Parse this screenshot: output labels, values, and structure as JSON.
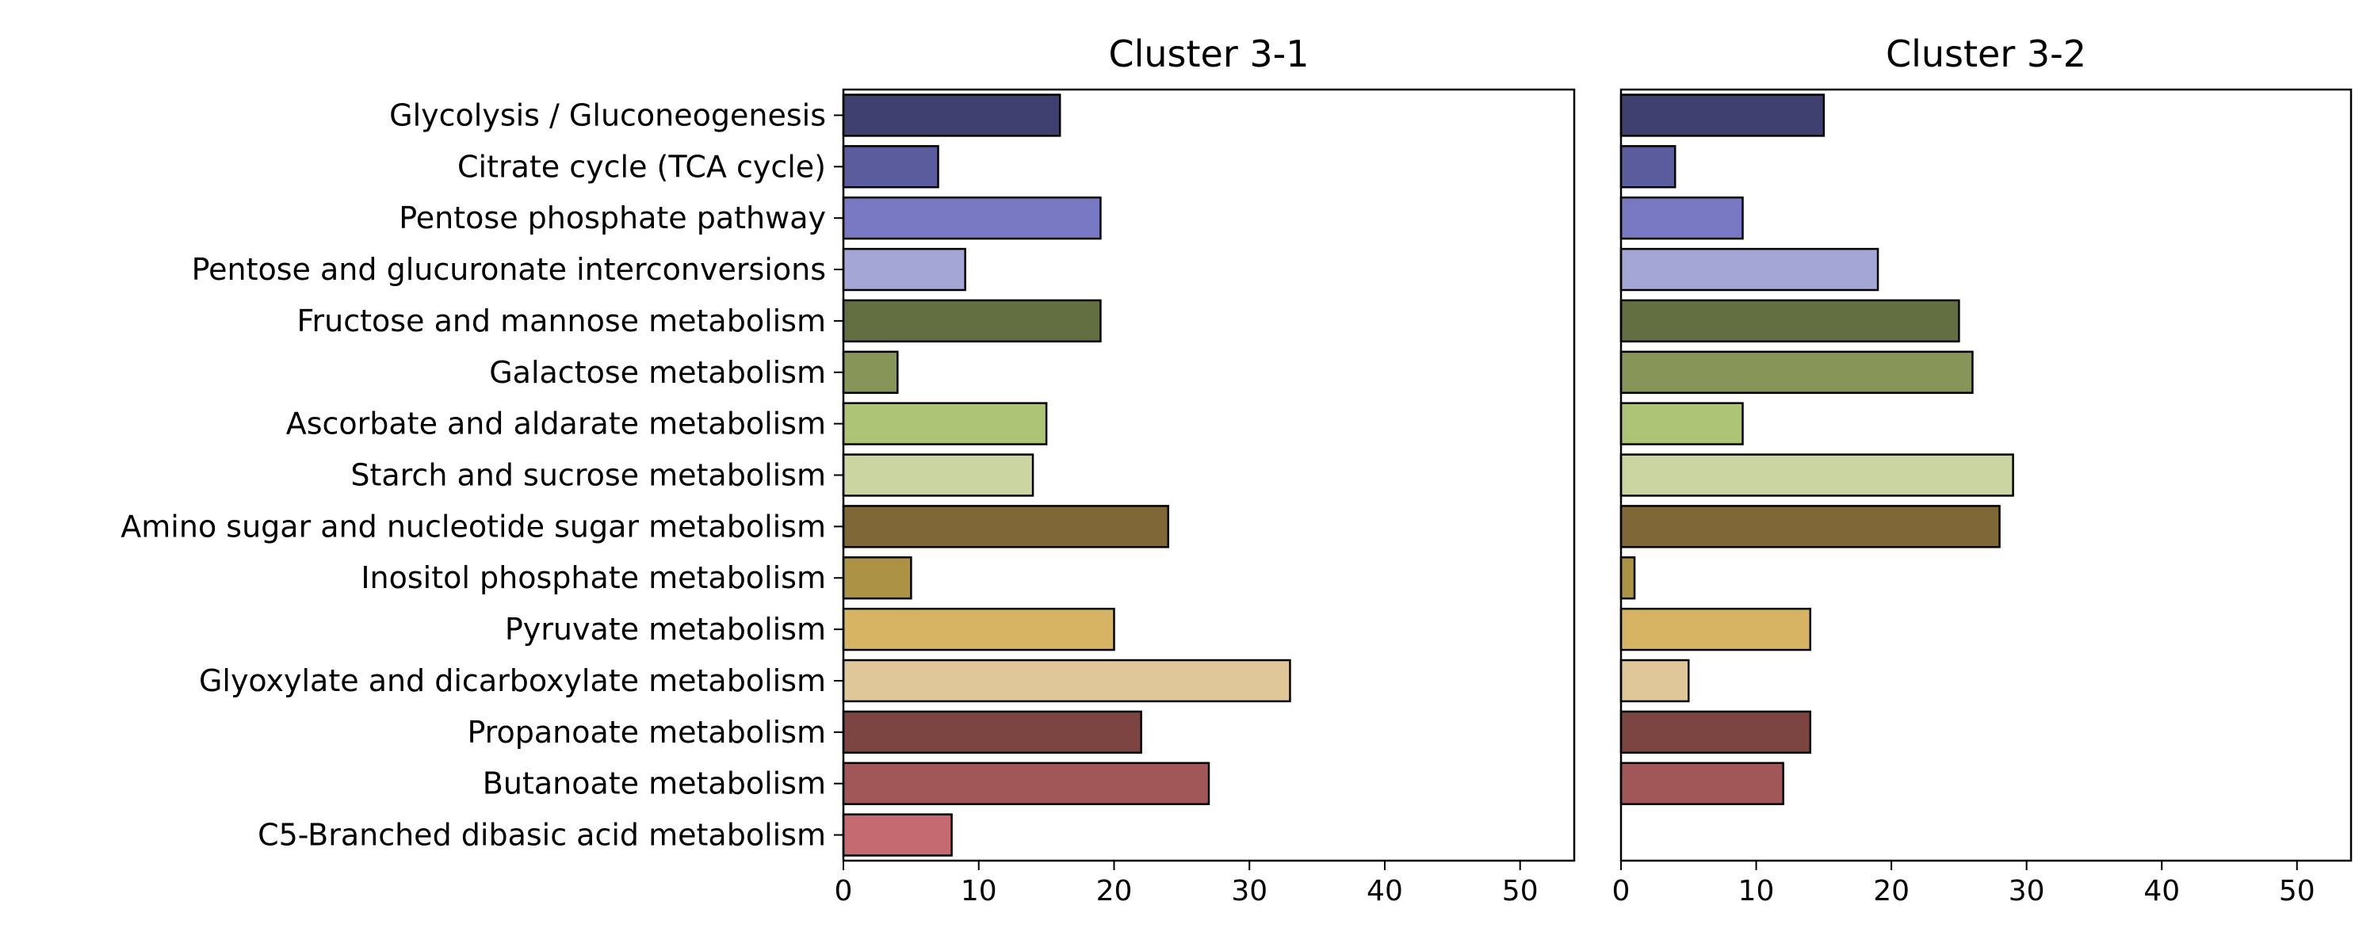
{
  "chart_data": {
    "type": "bar",
    "orientation": "horizontal",
    "categories": [
      "Glycolysis / Gluconeogenesis",
      "Citrate cycle (TCA cycle)",
      "Pentose phosphate pathway",
      "Pentose and glucuronate interconversions",
      "Fructose and mannose metabolism",
      "Galactose metabolism",
      "Ascorbate and aldarate metabolism",
      "Starch and sucrose metabolism",
      "Amino sugar and nucleotide sugar metabolism",
      "Inositol phosphate metabolism",
      "Pyruvate metabolism",
      "Glyoxylate and dicarboxylate metabolism",
      "Propanoate metabolism",
      "Butanoate metabolism",
      "C5-Branched dibasic acid metabolism"
    ],
    "colors": [
      "#404070",
      "#5a5c9e",
      "#7979c3",
      "#a4a6d6",
      "#636e41",
      "#889559",
      "#adc376",
      "#cbd5a1",
      "#806737",
      "#ac9244",
      "#d6b464",
      "#e0c79a",
      "#7d4542",
      "#a15757",
      "#c66a71"
    ],
    "xlim": [
      0,
      54
    ],
    "xticks": [
      0,
      10,
      20,
      30,
      40,
      50
    ],
    "panels": [
      {
        "title": "Cluster 3-1",
        "values": [
          16,
          7,
          19,
          9,
          19,
          4,
          15,
          14,
          24,
          5,
          20,
          33,
          22,
          27,
          8
        ]
      },
      {
        "title": "Cluster 3-2",
        "values": [
          15,
          4,
          9,
          19,
          25,
          26,
          9,
          29,
          28,
          1,
          14,
          5,
          14,
          12,
          0
        ]
      }
    ],
    "grid": false,
    "legend": "none"
  }
}
